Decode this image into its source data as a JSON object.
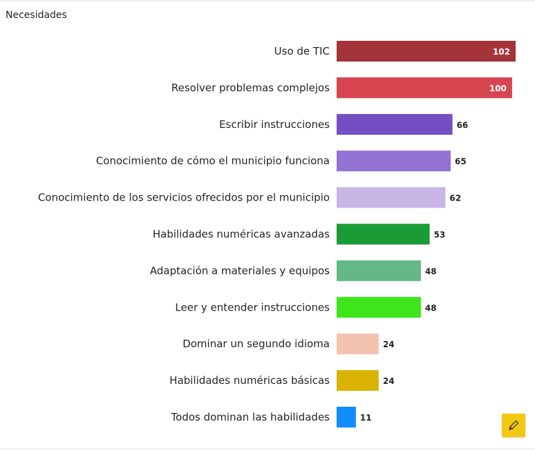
{
  "title": "Necesidades",
  "colors": {
    "text": "#252423",
    "edit_button": "#f2c811"
  },
  "edit_button": {
    "icon": "pencil-icon"
  },
  "chart_data": {
    "type": "bar",
    "orientation": "horizontal",
    "title": "Necesidades",
    "xlabel": "",
    "ylabel": "",
    "grid": false,
    "xlim": [
      0,
      102
    ],
    "categories": [
      "Uso de TIC",
      "Resolver problemas complejos",
      "Escribir instrucciones",
      "Conocimiento de cómo el municipio funciona",
      "Conocimiento de los servicios ofrecidos por el municipio",
      "Habilidades numéricas avanzadas",
      "Adaptación a materiales y equipos",
      "Leer y entender instrucciones",
      "Dominar un segundo idioma",
      "Habilidades numéricas básicas",
      "Todos dominan las habilidades"
    ],
    "values": [
      102,
      100,
      66,
      65,
      62,
      53,
      48,
      48,
      24,
      24,
      11
    ],
    "bar_colors": [
      "#a4343a",
      "#d64550",
      "#744ec2",
      "#9273d3",
      "#c8b7e6",
      "#1a9b36",
      "#63b885",
      "#3ee51a",
      "#f4c3b0",
      "#d9b300",
      "#118dff"
    ]
  }
}
